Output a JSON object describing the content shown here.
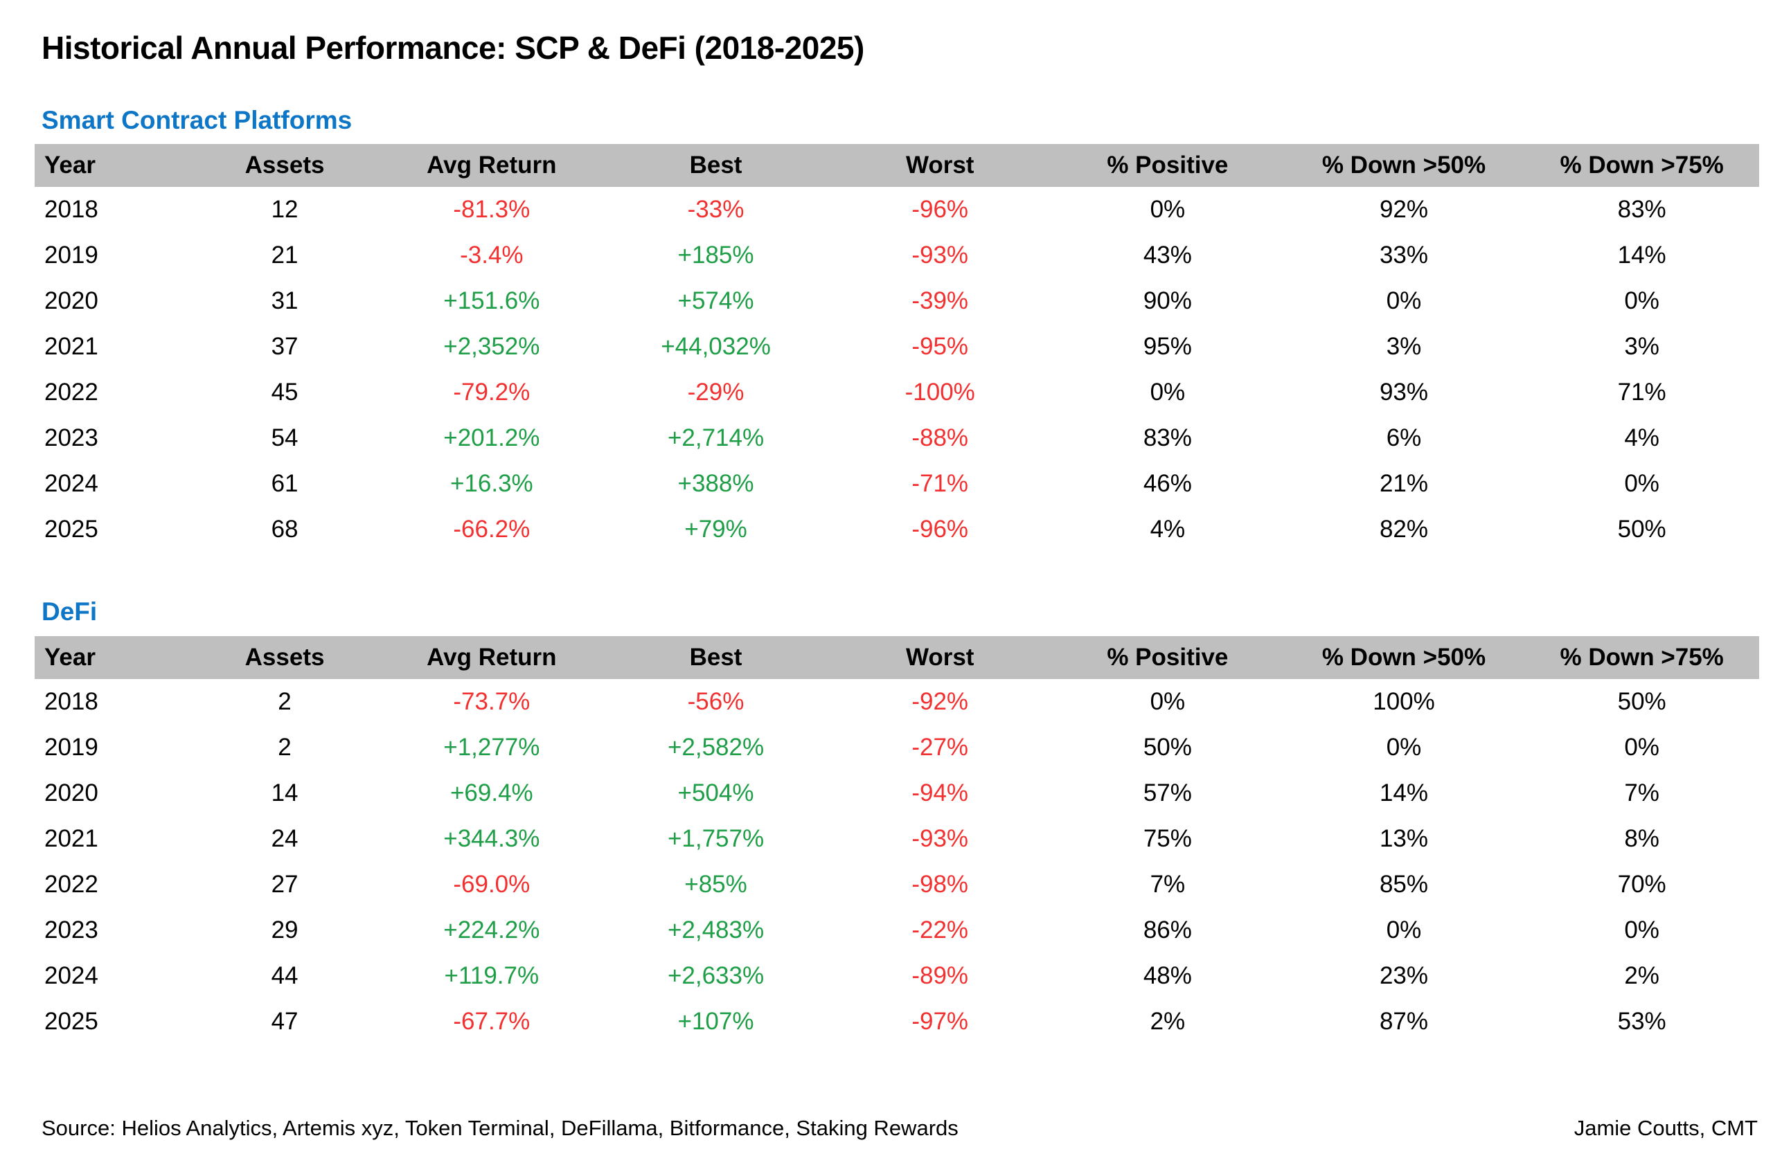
{
  "page": {
    "title": "Historical Annual Performance: SCP & DeFi (2018-2025)",
    "source": "Source: Helios Analytics, Artemis xyz, Token Terminal, DeFillama, Bitformance, Staking Rewards",
    "credit": "Jamie Coutts, CMT"
  },
  "colors": {
    "positive_green": "#1e9e46",
    "negative_red": "#f23030",
    "section_blue": "#0e76c6",
    "header_gray": "#bfbfbf",
    "text_black": "#000000",
    "background": "#ffffff"
  },
  "chart_data": [
    {
      "type": "table",
      "title": "Smart Contract Platforms",
      "columns": [
        "Year",
        "Assets",
        "Avg Return",
        "Best",
        "Worst",
        "% Positive",
        "% Down >50%",
        "% Down >75%"
      ],
      "rows": [
        [
          "2018",
          "12",
          "-81.3%",
          "-33%",
          "-96%",
          "0%",
          "92%",
          "83%"
        ],
        [
          "2019",
          "21",
          "-3.4%",
          "+185%",
          "-93%",
          "43%",
          "33%",
          "14%"
        ],
        [
          "2020",
          "31",
          "+151.6%",
          "+574%",
          "-39%",
          "90%",
          "0%",
          "0%"
        ],
        [
          "2021",
          "37",
          "+2,352%",
          "+44,032%",
          "-95%",
          "95%",
          "3%",
          "3%"
        ],
        [
          "2022",
          "45",
          "-79.2%",
          "-29%",
          "-100%",
          "0%",
          "93%",
          "71%"
        ],
        [
          "2023",
          "54",
          "+201.2%",
          "+2,714%",
          "-88%",
          "83%",
          "6%",
          "4%"
        ],
        [
          "2024",
          "61",
          "+16.3%",
          "+388%",
          "-71%",
          "46%",
          "21%",
          "0%"
        ],
        [
          "2025",
          "68",
          "-66.2%",
          "+79%",
          "-96%",
          "4%",
          "82%",
          "50%"
        ]
      ]
    },
    {
      "type": "table",
      "title": "DeFi",
      "columns": [
        "Year",
        "Assets",
        "Avg Return",
        "Best",
        "Worst",
        "% Positive",
        "% Down >50%",
        "% Down >75%"
      ],
      "rows": [
        [
          "2018",
          "2",
          "-73.7%",
          "-56%",
          "-92%",
          "0%",
          "100%",
          "50%"
        ],
        [
          "2019",
          "2",
          "+1,277%",
          "+2,582%",
          "-27%",
          "50%",
          "0%",
          "0%"
        ],
        [
          "2020",
          "14",
          "+69.4%",
          "+504%",
          "-94%",
          "57%",
          "14%",
          "7%"
        ],
        [
          "2021",
          "24",
          "+344.3%",
          "+1,757%",
          "-93%",
          "75%",
          "13%",
          "8%"
        ],
        [
          "2022",
          "27",
          "-69.0%",
          "+85%",
          "-98%",
          "7%",
          "85%",
          "70%"
        ],
        [
          "2023",
          "29",
          "+224.2%",
          "+2,483%",
          "-22%",
          "86%",
          "0%",
          "0%"
        ],
        [
          "2024",
          "44",
          "+119.7%",
          "+2,633%",
          "-89%",
          "48%",
          "23%",
          "2%"
        ],
        [
          "2025",
          "47",
          "-67.7%",
          "+107%",
          "-97%",
          "2%",
          "87%",
          "53%"
        ]
      ]
    }
  ]
}
